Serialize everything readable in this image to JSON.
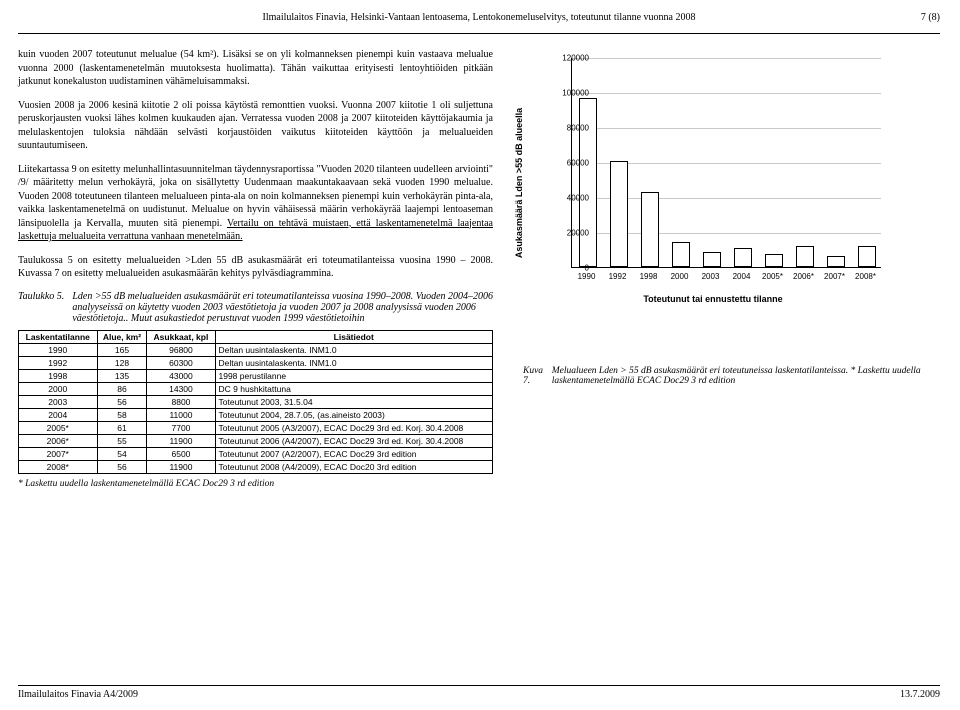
{
  "header": {
    "title": "Ilmailulaitos Finavia, Helsinki-Vantaan lentoasema, Lentokonemeluselvitys, toteutunut tilanne vuonna 2008",
    "pagenum": "7 (8)"
  },
  "body": {
    "p1": "kuin vuoden 2007 toteutunut melualue (54 km²). Lisäksi se on yli kolmanneksen pienempi kuin vastaava melualue vuonna 2000 (laskentamenetelmän muutoksesta huolimatta). Tähän vaikuttaa erityisesti lentoyhtiöiden pitkään jatkunut konekaluston uudistaminen vähämeluisammaksi.",
    "p2": "Vuosien 2008 ja 2006 kesinä kiitotie 2 oli poissa käytöstä remonttien vuoksi. Vuonna 2007 kiitotie 1 oli suljettuna peruskorjausten vuoksi lähes kolmen kuukauden ajan. Verratessa vuoden 2008 ja 2007 kiitoteiden käyttöjakaumia ja melulaskentojen tuloksia nähdään selvästi korjaustöiden vaikutus kiitoteiden käyttöön ja melualueiden suuntautumiseen.",
    "p3a": "Liitekartassa 9 on esitetty melunhallintasuunnitelman täydennysraportissa \"Vuoden 2020 tilanteen uudelleen arviointi\" /9/ määritetty melun verhokäyrä, joka on sisällytetty Uudenmaan maakuntakaavaan sekä vuoden 1990 melualue. Vuoden 2008 toteutuneen tilanteen melualueen pinta-ala on noin kolmanneksen pienempi kuin verhokäyrän pinta-ala, vaikka laskentamenetelmä on uudistunut. Melualue on hyvin vähäisessä määrin verhokäyrää laajempi lentoaseman länsipuolella ja Kervalla, muuten sitä pienempi. ",
    "p3u": "Vertailu on tehtävä muistaen, että laskentamenetelmä laajentaa laskettuja melualueita verrattuna vanhaan menetelmään.",
    "p4": "Taulukossa 5 on esitetty melualueiden >Lden 55 dB asukasmäärät eri toteumatilanteissa vuosina 1990 – 2008. Kuvassa 7 on esitetty melualueiden asukasmäärän kehitys pylväsdiagrammina.",
    "tabcaplabel": "Taulukko 5.",
    "tabcaptext": "Lden >55 dB melualueiden asukasmäärät eri toteumatilanteissa vuosina 1990–2008. Vuoden 2004–2006 analyyseissä on käytetty vuoden 2003 väestötietoja ja vuoden 2007 ja 2008 analyysissä vuoden 2006 väestötietoja.. Muut asukastiedot perustuvat vuoden 1999 väestötietoihin"
  },
  "table": {
    "head": [
      "Laskentatilanne",
      "Alue, km²",
      "Asukkaat, kpl",
      "Lisätiedot"
    ],
    "rows": [
      [
        "1990",
        "165",
        "96800",
        "Deltan uusintalaskenta. INM1.0"
      ],
      [
        "1992",
        "128",
        "60300",
        "Deltan uusintalaskenta. INM1.0"
      ],
      [
        "1998",
        "135",
        "43000",
        "1998 perustilanne"
      ],
      [
        "2000",
        "86",
        "14300",
        "DC 9 hushkitattuna"
      ],
      [
        "2003",
        "56",
        "8800",
        "Toteutunut 2003, 31.5.04"
      ],
      [
        "2004",
        "58",
        "11000",
        "Toteutunut 2004, 28.7.05, (as.aineisto 2003)"
      ],
      [
        "2005*",
        "61",
        "7700",
        "Toteutunut 2005 (A3/2007), ECAC Doc29 3rd ed. Korj. 30.4.2008"
      ],
      [
        "2006*",
        "55",
        "11900",
        "Toteutunut 2006 (A4/2007), ECAC Doc29 3rd ed. Korj. 30.4.2008"
      ],
      [
        "2007*",
        "54",
        "6500",
        "Toteutunut 2007 (A2/2007), ECAC Doc29 3rd edition"
      ],
      [
        "2008*",
        "56",
        "11900",
        "Toteutunut 2008 (A4/2009), ECAC Doc20 3rd edition"
      ]
    ],
    "footnote": "* Laskettu uudella laskentamenetelmällä ECAC Doc29 3 rd edition"
  },
  "chart": {
    "type": "bar",
    "ylabel": "Asukasmäärä Lden >55 dB alueella",
    "xlabel": "Toteutunut tai ennustettu tilanne",
    "ymax": 120000,
    "ytick_step": 20000,
    "yticks": [
      "0",
      "20000",
      "40000",
      "60000",
      "80000",
      "100000",
      "120000"
    ],
    "categories": [
      "1990",
      "1992",
      "1998",
      "2000",
      "2003",
      "2004",
      "2005*",
      "2006*",
      "2007*",
      "2008*"
    ],
    "values": [
      96800,
      60300,
      43000,
      14300,
      8800,
      11000,
      7700,
      11900,
      6500,
      11900
    ],
    "bar_fill": "#ffffff",
    "bar_border": "#000000",
    "grid_color": "#c9c9c9",
    "background": "#ffffff"
  },
  "figure": {
    "label": "Kuva 7.",
    "text": "Melualueen Lden > 55 dB asukasmäärät eri toteutuneissa laskentatilanteissa. * Laskettu uudella laskentamenetelmällä ECAC Doc29 3 rd edition"
  },
  "footer": {
    "left": "Ilmailulaitos Finavia A4/2009",
    "right": "13.7.2009"
  }
}
